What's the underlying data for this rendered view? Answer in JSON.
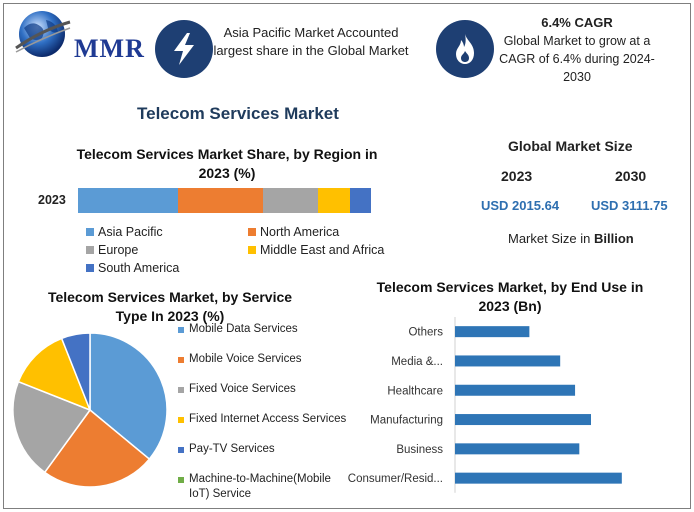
{
  "header": {
    "logo_text": "MMR",
    "box1_text": "Asia Pacific Market Accounted largest share in the Global Market",
    "box2_title": "6.4% CAGR",
    "box2_text": "Global Market to grow at a CAGR of 6.4% during 2024-2030"
  },
  "page_title": "Telecom Services Market",
  "global_market_size": {
    "title": "Global Market Size",
    "year_a": "2023",
    "year_b": "2030",
    "value_a": "USD 2015.64",
    "value_b": "USD 3111.75",
    "unit_text": "Market Size in ",
    "unit_bold": "Billion"
  },
  "colors": {
    "blue": "#5b9bd5",
    "orange": "#ed7d31",
    "gray": "#a5a5a5",
    "yellow": "#ffc000",
    "darkblue": "#4472c4",
    "green": "#70ad47",
    "icon_bg": "#1e3f73"
  },
  "icons": [
    "globe-logo-icon",
    "lightning-icon",
    "flame-icon"
  ],
  "chart_data": [
    {
      "type": "bar",
      "stacked": true,
      "title": "Telecom Services Market Share, by Region in 2023 (%)",
      "categories": [
        "2023"
      ],
      "series": [
        {
          "name": "Asia Pacific",
          "values": [
            34
          ],
          "color": "#5b9bd5"
        },
        {
          "name": "North America",
          "values": [
            29
          ],
          "color": "#ed7d31"
        },
        {
          "name": "Europe",
          "values": [
            19
          ],
          "color": "#a5a5a5"
        },
        {
          "name": "Middle East and Africa",
          "values": [
            11
          ],
          "color": "#ffc000"
        },
        {
          "name": "South America",
          "values": [
            7
          ],
          "color": "#4472c4"
        }
      ],
      "legend": "bottom"
    },
    {
      "type": "pie",
      "title": "Telecom Services Market, by Service Type In 2023 (%)",
      "labels": [
        "Mobile Data Services",
        "Mobile Voice Services",
        "Fixed Voice Services",
        "Fixed Internet Access Services",
        "Pay-TV Services",
        "Machine-to-Machine(Mobile IoT) Service"
      ],
      "values": [
        36,
        24,
        21,
        13,
        6,
        0
      ],
      "colors": [
        "#5b9bd5",
        "#ed7d31",
        "#a5a5a5",
        "#ffc000",
        "#4472c4",
        "#70ad47"
      ],
      "legend": "right"
    },
    {
      "type": "bar",
      "orientation": "horizontal",
      "title": "Telecom Services Market, by End Use in 2023 (Bn)",
      "categories": [
        "Others",
        "Media &...",
        "Healthcare",
        "Manufacturing",
        "Business",
        "Consumer/Resid..."
      ],
      "values": [
        70,
        99,
        113,
        128,
        117,
        157
      ],
      "color": "#2e75b6",
      "xlim": [
        0,
        160
      ]
    }
  ]
}
